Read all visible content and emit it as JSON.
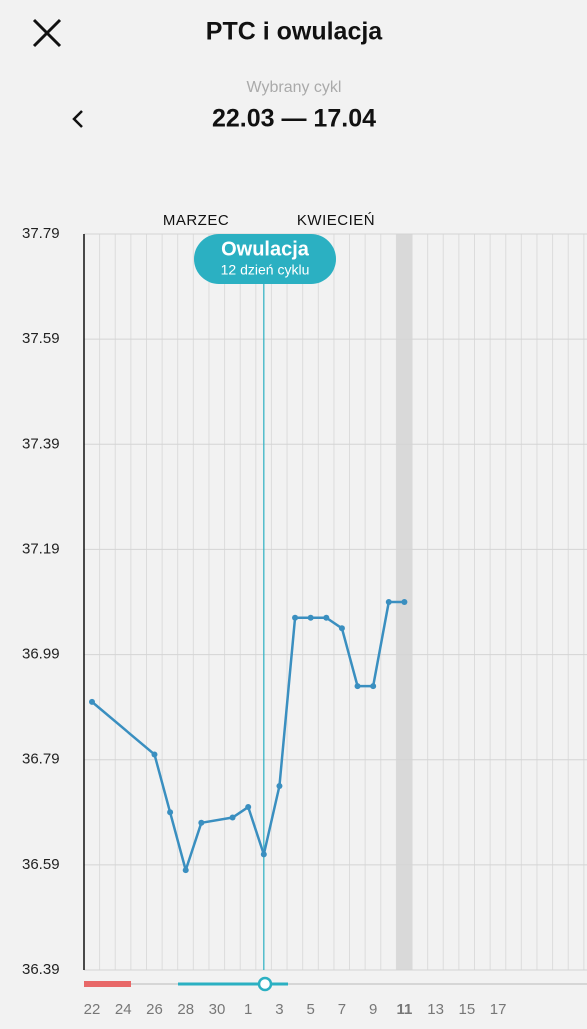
{
  "header": {
    "title": "PTC i owulacja",
    "subtitle": "Wybrany cykl",
    "cycle_range": "22.03 — 17.04"
  },
  "chart_data": {
    "type": "line",
    "months": [
      "MARZEC",
      "KWIECIEŃ"
    ],
    "annotation": {
      "title": "Owulacja",
      "subtitle": "12 dzień cyklu"
    },
    "categories": [
      "22",
      null,
      "24",
      null,
      "26",
      null,
      "28",
      null,
      "30",
      null,
      "1",
      null,
      "3",
      null,
      "5",
      null,
      "7",
      null,
      "9",
      null,
      "11",
      null,
      "13",
      null,
      "15",
      null,
      "17"
    ],
    "series": [
      {
        "name": "PTC",
        "color": "#3a8fc0",
        "values": [
          36.9,
          null,
          null,
          null,
          36.8,
          36.69,
          36.58,
          36.67,
          null,
          36.68,
          36.7,
          36.61,
          36.74,
          37.06,
          37.06,
          37.06,
          37.04,
          36.93,
          36.93,
          37.09,
          37.09,
          null,
          null,
          null,
          null,
          null,
          null
        ]
      }
    ],
    "ylim": [
      36.39,
      37.79
    ],
    "yticks": [
      36.39,
      36.59,
      36.79,
      36.99,
      37.19,
      37.39,
      37.59,
      37.79
    ],
    "grid": true
  }
}
